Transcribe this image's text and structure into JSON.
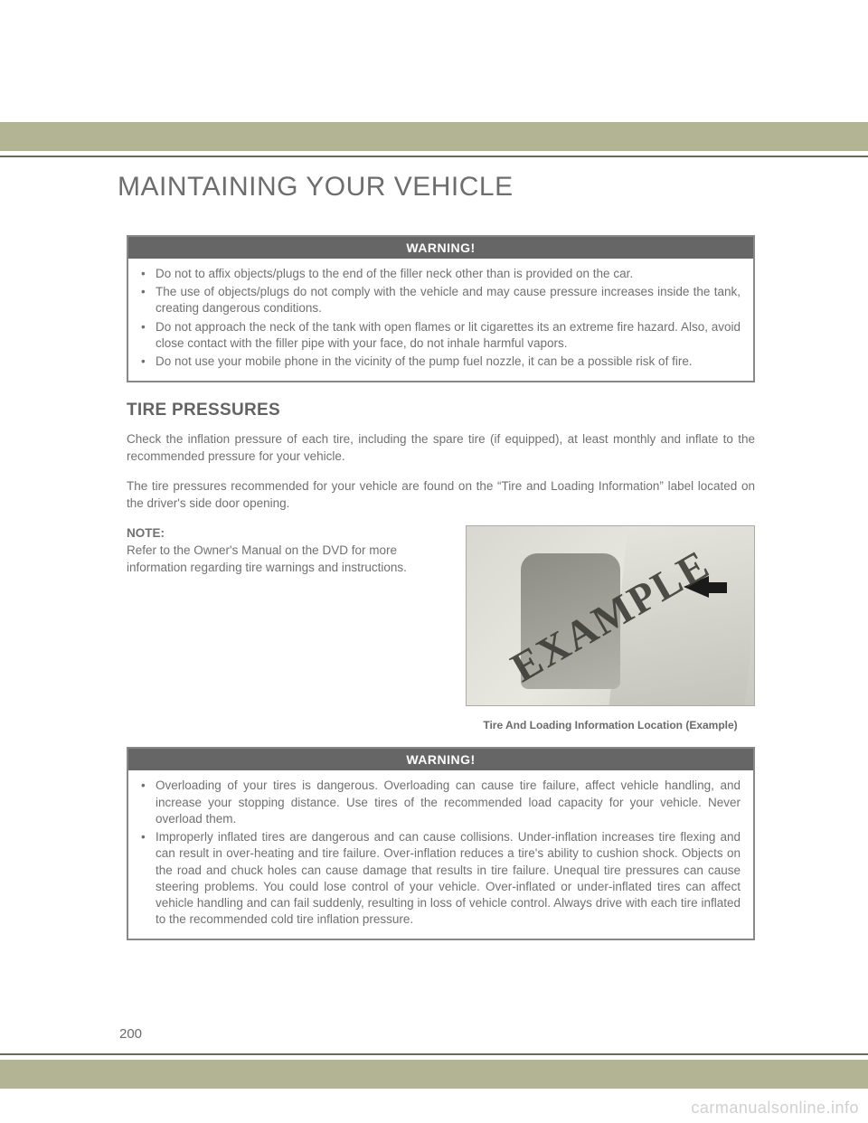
{
  "section_title": "MAINTAINING YOUR VEHICLE",
  "warning1": {
    "header": "WARNING!",
    "items": [
      "Do not to affix objects/plugs to the end of the filler neck other than is provided on the car.",
      "The use of objects/plugs do not comply with the vehicle and may cause pressure increases inside the tank, creating dangerous conditions.",
      "Do not approach the neck of the tank with open flames or lit cigarettes its an extreme fire hazard. Also, avoid close contact with the filler pipe with your face, do not inhale harmful vapors.",
      "Do not use your mobile phone in the vicinity of the pump fuel nozzle, it can be a possible risk of fire."
    ]
  },
  "heading": "TIRE PRESSURES",
  "para1": "Check the inflation pressure of each tire, including the spare tire (if equipped), at least monthly and inflate to the recommended pressure for your vehicle.",
  "para2": "The tire pressures recommended for your vehicle are found on the “Tire and Loading Information” label located on the driver's side door opening.",
  "note_label": "NOTE:",
  "note_text": "Refer to the Owner's Manual on the DVD for more information regarding tire warnings and instructions.",
  "figure_stamp": "EXAMPLE",
  "caption": "Tire And Loading Information Location (Example)",
  "warning2": {
    "header": "WARNING!",
    "items": [
      "Overloading of your tires is dangerous. Overloading can cause tire failure, affect vehicle handling, and increase your stopping distance. Use tires of the recommended load capacity for your vehicle. Never overload them.",
      "Improperly inflated tires are dangerous and can cause collisions. Under-inflation increases tire flexing and can result in over-heating and tire failure. Over-inflation reduces a tire's ability to cushion shock. Objects on the road and chuck holes can cause damage that results in tire failure. Unequal tire pressures can cause steering problems. You could lose control of your vehicle. Over-inflated or under-inflated tires can affect vehicle handling and can fail suddenly, resulting in loss of vehicle control. Always drive with each tire inflated to the recommended cold tire inflation pressure."
    ]
  },
  "page_number": "200",
  "watermark": "carmanualsonline.info",
  "colors": {
    "olive": "#b2b494",
    "text": "#707070",
    "header_bg": "#666666"
  }
}
